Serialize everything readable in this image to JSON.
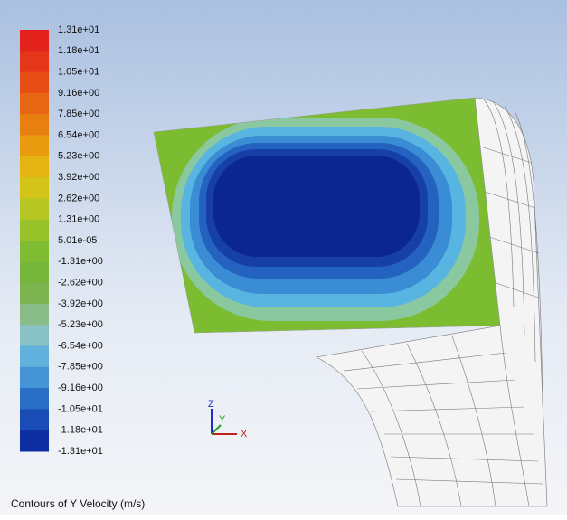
{
  "colorbar": {
    "labels": [
      "1.31e+01",
      "1.18e+01",
      "1.05e+01",
      "9.16e+00",
      "7.85e+00",
      "6.54e+00",
      "5.23e+00",
      "3.92e+00",
      "2.62e+00",
      "1.31e+00",
      "5.01e-05",
      "-1.31e+00",
      "-2.62e+00",
      "-3.92e+00",
      "-5.23e+00",
      "-6.54e+00",
      "-7.85e+00",
      "-9.16e+00",
      "-1.05e+01",
      "-1.18e+01",
      "-1.31e+01"
    ],
    "colors": [
      "#e3221c",
      "#e5361a",
      "#e64e16",
      "#e76613",
      "#e78011",
      "#e89b0f",
      "#e4b511",
      "#d4c41a",
      "#b6c623",
      "#98c22a",
      "#80bc31",
      "#76b63b",
      "#7cb450",
      "#8abc8a",
      "#88c2c4",
      "#62b0dc",
      "#4494d6",
      "#2a6ec6",
      "#1a4cb6",
      "#0f2ea4"
    ]
  },
  "triad": {
    "z": "Z",
    "y": "Y",
    "x": "X"
  },
  "caption": "Contours of Y Velocity (m/s)"
}
